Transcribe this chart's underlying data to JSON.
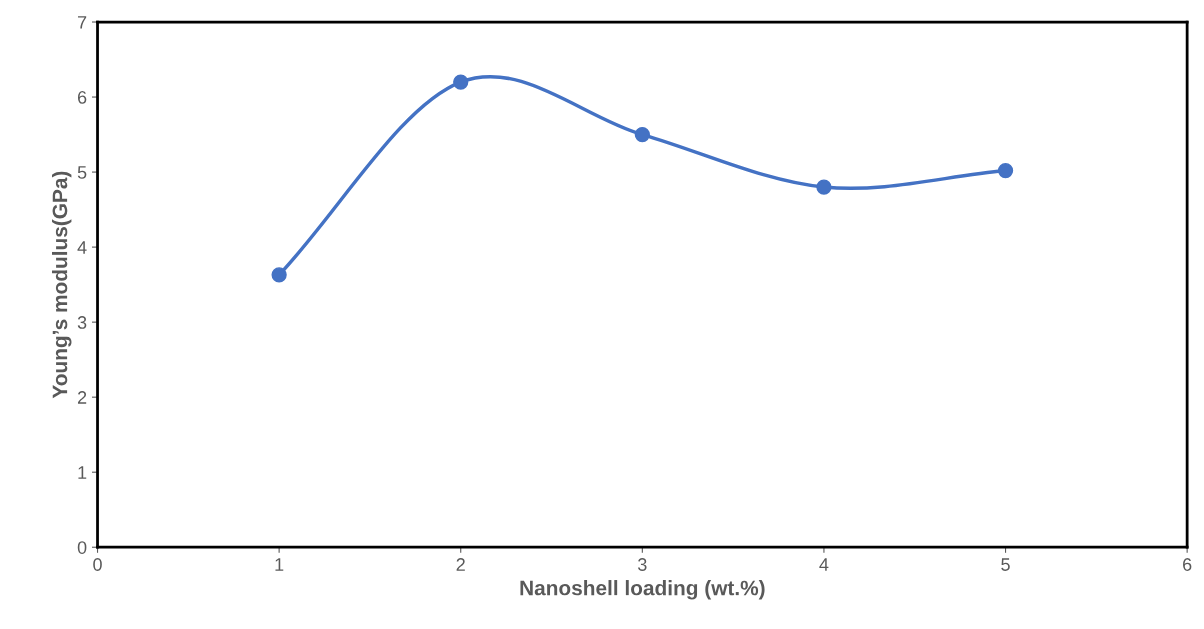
{
  "chart_data": {
    "type": "line",
    "xlabel": "Nanoshell loading (wt.%)",
    "ylabel": "Young’s modulus(GPa)",
    "x": [
      1,
      2,
      3,
      4,
      5
    ],
    "series": [
      {
        "color": "#4472c4",
        "values": [
          3.63,
          6.2,
          5.5,
          4.8,
          5.02
        ]
      }
    ],
    "xlim": [
      0,
      6
    ],
    "xticks": [
      0,
      1,
      2,
      3,
      4,
      5,
      6
    ],
    "ylim": [
      0,
      7
    ],
    "yticks": [
      0,
      1,
      2,
      3,
      4,
      5,
      6,
      7
    ],
    "grid": false,
    "marker": "circle",
    "line_style": "solid"
  }
}
